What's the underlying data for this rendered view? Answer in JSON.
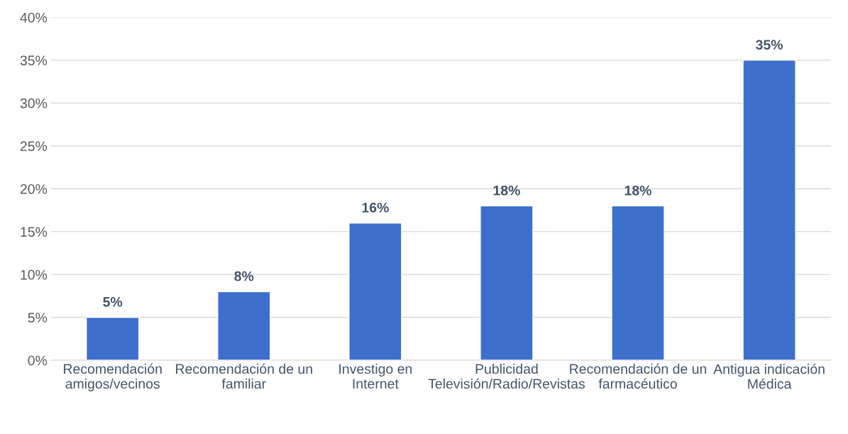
{
  "chart_data": {
    "type": "bar",
    "categories": [
      "Recomendación amigos/vecinos",
      "Recomendación de un familiar",
      "Investigo en Internet",
      "Publicidad Televisión/Radio/Revistas",
      "Recomendación de un farmacéutico",
      "Antigua indicación Médica"
    ],
    "values": [
      5,
      8,
      16,
      18,
      18,
      35
    ],
    "value_labels": [
      "5%",
      "8%",
      "16%",
      "18%",
      "18%",
      "35%"
    ],
    "color": "#3f6fcc",
    "ylim": [
      0,
      40
    ],
    "yticks": [
      {
        "value": 0,
        "label": "0%"
      },
      {
        "value": 5,
        "label": "5%"
      },
      {
        "value": 10,
        "label": "10%"
      },
      {
        "value": 15,
        "label": "15%"
      },
      {
        "value": 20,
        "label": "20%"
      },
      {
        "value": 25,
        "label": "25%"
      },
      {
        "value": 30,
        "label": "30%"
      },
      {
        "value": 35,
        "label": "35%"
      },
      {
        "value": 40,
        "label": "40%"
      }
    ],
    "grid": "y"
  }
}
